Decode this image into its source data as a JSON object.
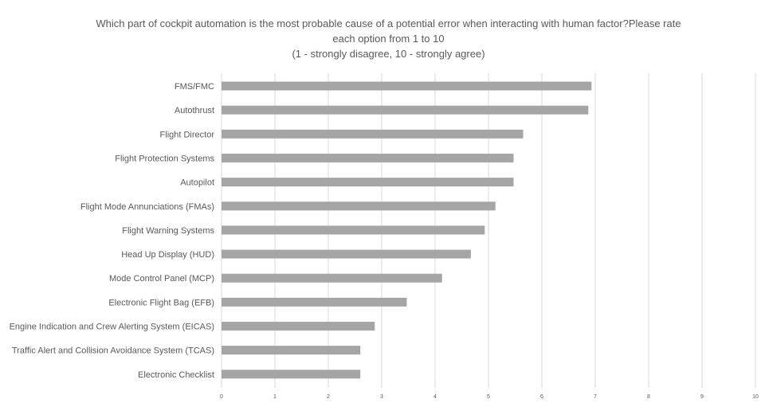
{
  "chart_data": {
    "type": "bar",
    "orientation": "horizontal",
    "title_lines": [
      "Which part of cockpit automation is the most probable cause of a potential error when interacting with human factor?Please rate",
      "each option from 1 to 10",
      "(1 - strongly disagree, 10 - strongly agree)"
    ],
    "categories": [
      "FMS/FMC",
      "Autothrust",
      "Flight Director",
      "Flight Protection Systems",
      "Autopilot",
      "Flight Mode Annunciations (FMAs)",
      "Flight Warning Systems",
      "Head Up Display (HUD)",
      "Mode Control Panel (MCP)",
      "Electronic Flight Bag (EFB)",
      "Engine Indication and Crew Alerting System (EICAS)",
      "Traffic Alert and Collision Avoidance System (TCAS)",
      "Electronic Checklist"
    ],
    "values": [
      6.93,
      6.87,
      5.65,
      5.47,
      5.47,
      5.13,
      4.93,
      4.67,
      4.13,
      3.47,
      2.87,
      2.6,
      2.6
    ],
    "xlim": [
      0,
      10
    ],
    "xticks": [
      "0",
      "1",
      "2",
      "3",
      "4",
      "5",
      "6",
      "7",
      "8",
      "9",
      "10"
    ],
    "grid": true,
    "bar_color": "#a5a5a5",
    "grid_color": "#d9d9d9",
    "text_color": "#595959"
  }
}
